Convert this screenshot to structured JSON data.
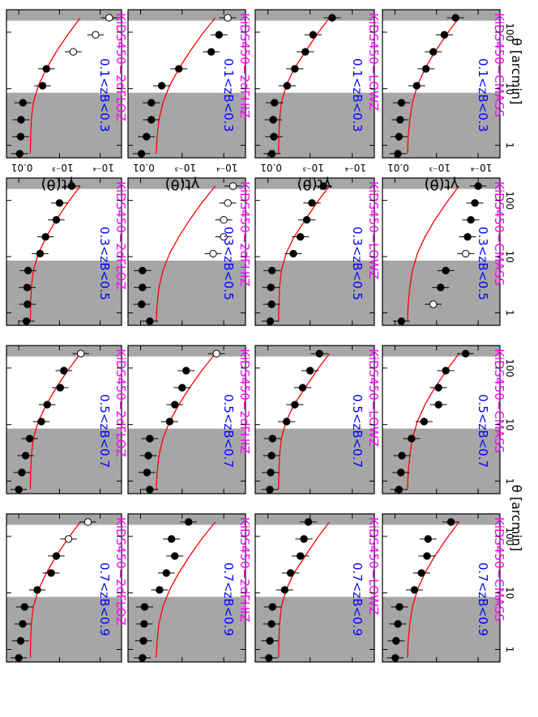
{
  "colors": {
    "sample_label": "#ff00ff",
    "bin_label": "#0000ff",
    "model": "#ff0000",
    "mask": "#a6a6a6"
  },
  "axis_text": {
    "ylabel": "γt(θ)",
    "xlabel": "θ [arcmin]",
    "y_ticks": [
      "10⁻⁴",
      "10⁻³",
      "0.01"
    ],
    "x_ticks": [
      "1",
      "10",
      "100"
    ]
  },
  "chart_data": {
    "type": "scatter",
    "layout": "4x4 grid of panels, figure rotated 90 degrees",
    "xlabel": "θ [arcmin]",
    "ylabel": "γt(θ)",
    "x_scale": "log",
    "y_scale": "log",
    "xlim": [
      0.6,
      250
    ],
    "ylim": [
      3e-05,
      0.02
    ],
    "masked_ranges": [
      [
        0.6,
        8.5
      ],
      [
        160,
        250
      ]
    ],
    "theta": [
      0.71,
      1.42,
      2.83,
      5.65,
      11.3,
      22.5,
      45,
      90,
      180
    ],
    "rows": [
      {
        "label": "KiDS450−2dFLOZ",
        "model": [
          0.0052,
          0.0051,
          0.0049,
          0.0044,
          0.0033,
          0.0021,
          0.0012,
          0.00063,
          0.00031
        ]
      },
      {
        "label": "KiDS450−2dFHIZ",
        "model": [
          0.0042,
          0.004,
          0.0036,
          0.0029,
          0.002,
          0.0012,
          0.00066,
          0.00034,
          0.00016
        ]
      },
      {
        "label": "KiDS450−LOWZ",
        "model": [
          0.0056,
          0.0055,
          0.0053,
          0.0048,
          0.0037,
          0.0024,
          0.0013,
          0.0007,
          0.00035
        ]
      },
      {
        "label": "KiDS450−CMASS",
        "model": [
          0.005,
          0.0048,
          0.0044,
          0.0038,
          0.0029,
          0.0019,
          0.0011,
          0.00058,
          0.00029
        ]
      }
    ],
    "columns": [
      {
        "label": "0.1<zB<0.3"
      },
      {
        "label": "0.3<zB<0.5"
      },
      {
        "label": "0.5<zB<0.7"
      },
      {
        "label": "0.7<zB<0.9"
      }
    ],
    "panels": [
      {
        "row": 0,
        "col": 0,
        "y": [
          0.0095,
          0.009,
          0.0088,
          0.0079,
          0.0026,
          0.0021,
          0.00046,
          0.00013,
          6e-05
        ],
        "open": [
          false,
          false,
          false,
          false,
          false,
          false,
          true,
          true,
          true
        ]
      },
      {
        "row": 0,
        "col": 1,
        "y": [
          0.0065,
          0.0061,
          0.0062,
          0.0059,
          0.003,
          0.0022,
          0.0012,
          0.001,
          0.0005
        ],
        "open": [
          false,
          false,
          false,
          false,
          false,
          false,
          false,
          false,
          false
        ]
      },
      {
        "row": 0,
        "col": 2,
        "y": [
          0.01,
          0.0084,
          0.0068,
          0.0054,
          0.0028,
          0.002,
          0.00096,
          0.00078,
          0.0003
        ],
        "open": [
          false,
          false,
          false,
          false,
          false,
          false,
          false,
          false,
          true
        ]
      },
      {
        "row": 0,
        "col": 3,
        "y": [
          0.01,
          0.009,
          0.008,
          0.0072,
          0.0035,
          0.0016,
          0.0012,
          0.0006,
          0.0002
        ],
        "open": [
          false,
          false,
          false,
          false,
          false,
          false,
          false,
          true,
          true
        ]
      },
      {
        "row": 1,
        "col": 0,
        "y": [
          0.0095,
          0.0072,
          0.0055,
          0.0055,
          0.0031,
          0.0012,
          0.0002,
          0.00013,
          8e-05
        ],
        "open": [
          false,
          false,
          false,
          false,
          false,
          false,
          false,
          false,
          true
        ]
      },
      {
        "row": 1,
        "col": 1,
        "y": [
          0.006,
          0.0094,
          0.009,
          0.009,
          0.00018,
          0.0001,
          0.0001,
          8e-05,
          6e-05
        ],
        "open": [
          false,
          false,
          false,
          false,
          true,
          true,
          true,
          true,
          true
        ]
      },
      {
        "row": 1,
        "col": 2,
        "y": [
          0.006,
          0.007,
          0.0065,
          0.006,
          0.002,
          0.0015,
          0.001,
          0.0008,
          0.00015
        ],
        "open": [
          false,
          false,
          false,
          false,
          false,
          false,
          false,
          false,
          true
        ]
      },
      {
        "row": 1,
        "col": 3,
        "y": [
          0.009,
          0.0085,
          0.0082,
          0.008,
          0.0035,
          0.0024,
          0.0015,
          0.0018,
          0.0007
        ],
        "open": [
          false,
          false,
          false,
          false,
          false,
          false,
          false,
          false,
          false
        ]
      },
      {
        "row": 2,
        "col": 0,
        "y": [
          0.008,
          0.0072,
          0.0075,
          0.007,
          0.0035,
          0.0023,
          0.0013,
          0.00085,
          0.0003
        ],
        "open": [
          false,
          false,
          false,
          false,
          false,
          false,
          false,
          false,
          false
        ]
      },
      {
        "row": 2,
        "col": 1,
        "y": [
          0.0088,
          0.0082,
          0.0085,
          0.008,
          0.0025,
          0.0017,
          0.0012,
          0.0009,
          0.00048
        ],
        "open": [
          false,
          false,
          false,
          false,
          false,
          false,
          false,
          false,
          false
        ]
      },
      {
        "row": 2,
        "col": 2,
        "y": [
          0.009,
          0.0086,
          0.0082,
          0.0078,
          0.0036,
          0.0023,
          0.0015,
          0.001,
          0.0006
        ],
        "open": [
          false,
          false,
          false,
          false,
          false,
          false,
          false,
          false,
          false
        ]
      },
      {
        "row": 2,
        "col": 3,
        "y": [
          0.0095,
          0.009,
          0.0082,
          0.0078,
          0.004,
          0.0029,
          0.0017,
          0.0014,
          0.0011
        ],
        "open": [
          false,
          false,
          false,
          false,
          false,
          false,
          false,
          false,
          false
        ]
      },
      {
        "row": 3,
        "col": 0,
        "y": [
          0.0085,
          0.008,
          0.0075,
          0.007,
          0.003,
          0.0018,
          0.0012,
          0.00065,
          0.00035
        ],
        "open": [
          false,
          false,
          false,
          false,
          false,
          false,
          false,
          false,
          false
        ]
      },
      {
        "row": 3,
        "col": 1,
        "y": [
          0.007,
          0.0012,
          0.0008,
          0.0006,
          0.0002,
          0.00018,
          0.00015,
          0.00012,
          0.0001
        ],
        "open": [
          false,
          true,
          false,
          false,
          true,
          false,
          false,
          false,
          false
        ]
      },
      {
        "row": 3,
        "col": 2,
        "y": [
          0.008,
          0.0072,
          0.0068,
          0.004,
          0.002,
          0.0009,
          0.0009,
          0.0006,
          0.0002
        ],
        "open": [
          false,
          false,
          false,
          false,
          false,
          false,
          false,
          false,
          false
        ]
      },
      {
        "row": 3,
        "col": 3,
        "y": [
          0.0098,
          0.0094,
          0.0085,
          0.0078,
          0.0034,
          0.0023,
          0.0017,
          0.0016,
          0.00045
        ],
        "open": [
          false,
          false,
          false,
          false,
          false,
          false,
          false,
          false,
          false
        ]
      }
    ]
  }
}
